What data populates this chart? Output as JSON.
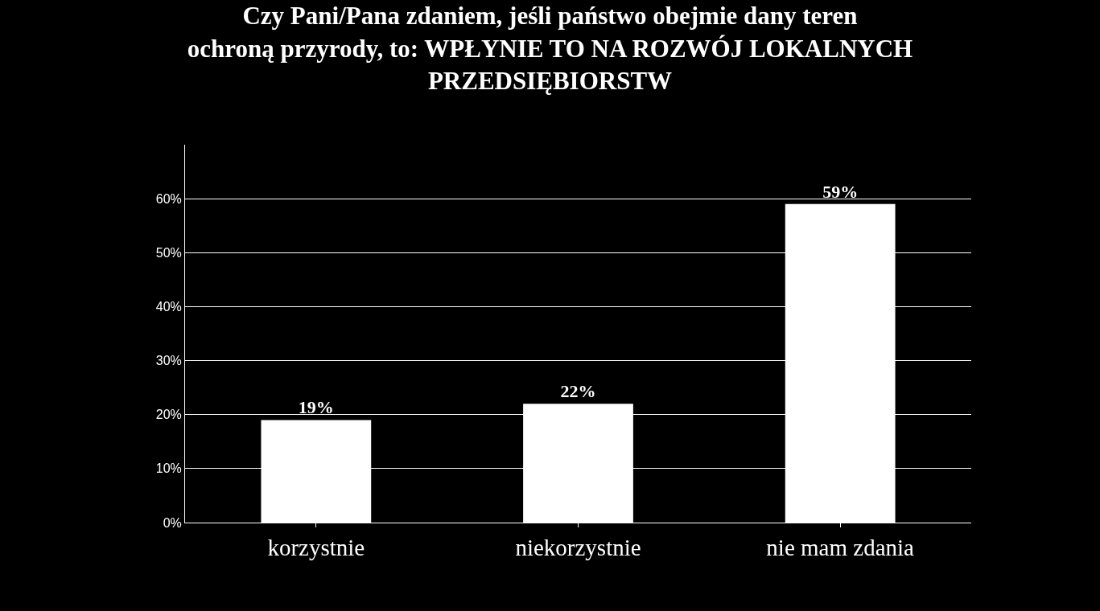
{
  "chart_data": {
    "type": "bar",
    "title": "Czy Pani/Pana zdaniem, jeśli państwo obejmie dany teren ochroną przyrody, to: WPŁYNIE TO NA ROZWÓJ LOKALNYCH PRZEDSIĘBIORSTW",
    "categories": [
      "korzystnie",
      "niekorzystnie",
      "nie mam zdania"
    ],
    "values": [
      19,
      22,
      59
    ],
    "color": "#ffffff",
    "ylim": [
      0,
      70
    ],
    "yticks": [
      {
        "value": 0,
        "label": "0%"
      },
      {
        "value": 10,
        "label": "10%"
      },
      {
        "value": 20,
        "label": "20%"
      },
      {
        "value": 30,
        "label": "30%"
      },
      {
        "value": 40,
        "label": "40%"
      },
      {
        "value": 50,
        "label": "50%"
      },
      {
        "value": 60,
        "label": "60%"
      }
    ],
    "value_labels": [
      "19%",
      "22%",
      "59%"
    ],
    "grid": "y",
    "legend": false
  }
}
